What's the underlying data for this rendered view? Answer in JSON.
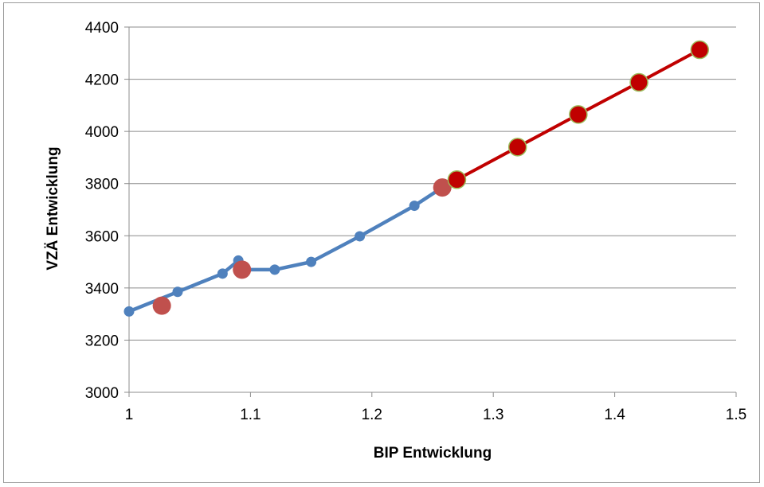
{
  "chart_data": {
    "type": "scatter",
    "title": "",
    "xlabel": "BIP Entwicklung",
    "ylabel": "VZÄ Entwicklung",
    "xlim": [
      1,
      1.5
    ],
    "ylim": [
      3000,
      4400
    ],
    "x_ticks": [
      1,
      1.1,
      1.2,
      1.3,
      1.4,
      1.5
    ],
    "x_tick_labels": [
      "1",
      "1.1",
      "1.2",
      "1.3",
      "1.4",
      "1.5"
    ],
    "y_ticks": [
      3000,
      3200,
      3400,
      3600,
      3800,
      4000,
      4200,
      4400
    ],
    "y_tick_labels": [
      "3000",
      "3200",
      "3400",
      "3600",
      "3800",
      "4000",
      "4200",
      "4400"
    ],
    "grid": "horizontal",
    "legend": "none",
    "series": [
      {
        "style": "line-markers",
        "color": "#4F81BD",
        "x": [
          1.0,
          1.04,
          1.077,
          1.09,
          1.095,
          1.12,
          1.15,
          1.19,
          1.235,
          1.258
        ],
        "y": [
          3310,
          3385,
          3455,
          3505,
          3470,
          3470,
          3500,
          3598,
          3715,
          3785
        ]
      },
      {
        "style": "markers",
        "color": "#C0504D",
        "x": [
          1.027,
          1.093,
          1.258
        ],
        "y": [
          3332,
          3470,
          3785
        ]
      },
      {
        "style": "line-markers",
        "color": "#C00000",
        "marker_color": "#C00000",
        "marker_edge": "#9BBB59",
        "x": [
          1.27,
          1.32,
          1.37,
          1.42,
          1.47
        ],
        "y": [
          3815,
          3940,
          4065,
          4188,
          4313
        ]
      }
    ]
  }
}
